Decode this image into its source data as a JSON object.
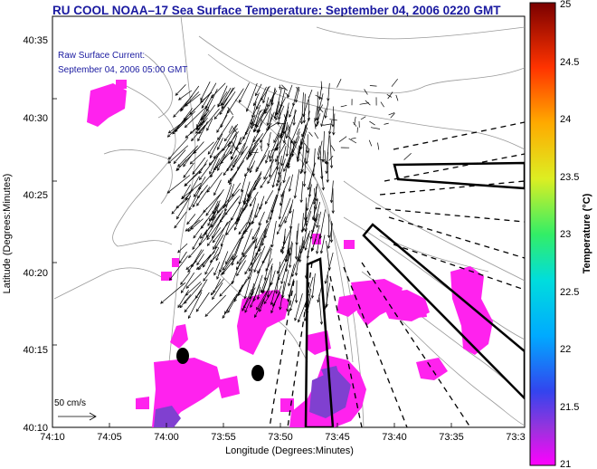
{
  "title": "RU COOL  NOAA–17  Sea Surface Temperature:  September 04, 2006 0220 GMT",
  "annotation": {
    "line1": "Raw Surface Current:",
    "line2": "September 04, 2006 05:00 GMT"
  },
  "scale_label": "50 cm/s",
  "axes": {
    "xlabel": "Longitude (Degrees:Minutes)",
    "ylabel": "Latitude (Degrees:Minutes)",
    "x_ticks": [
      "74:10",
      "74:05",
      "74:00",
      "73:55",
      "73:50",
      "73:45",
      "73:40",
      "73:35",
      "73:3"
    ],
    "y_ticks": [
      "40:35",
      "40:30",
      "40:25",
      "40:20",
      "40:15",
      "40:10"
    ]
  },
  "colorbar": {
    "label": "Temperature (°C)",
    "min": 21,
    "max": 25,
    "ticks": [
      "25",
      "24.5",
      "24",
      "23.5",
      "23",
      "22.5",
      "22",
      "21.5",
      "21"
    ]
  },
  "colors": {
    "title": "#1a1aa0",
    "sst_warm_patch": "#ff22ee",
    "sst_cool_patch": "#8040d0",
    "land_contours": "#9a9a9a"
  }
}
